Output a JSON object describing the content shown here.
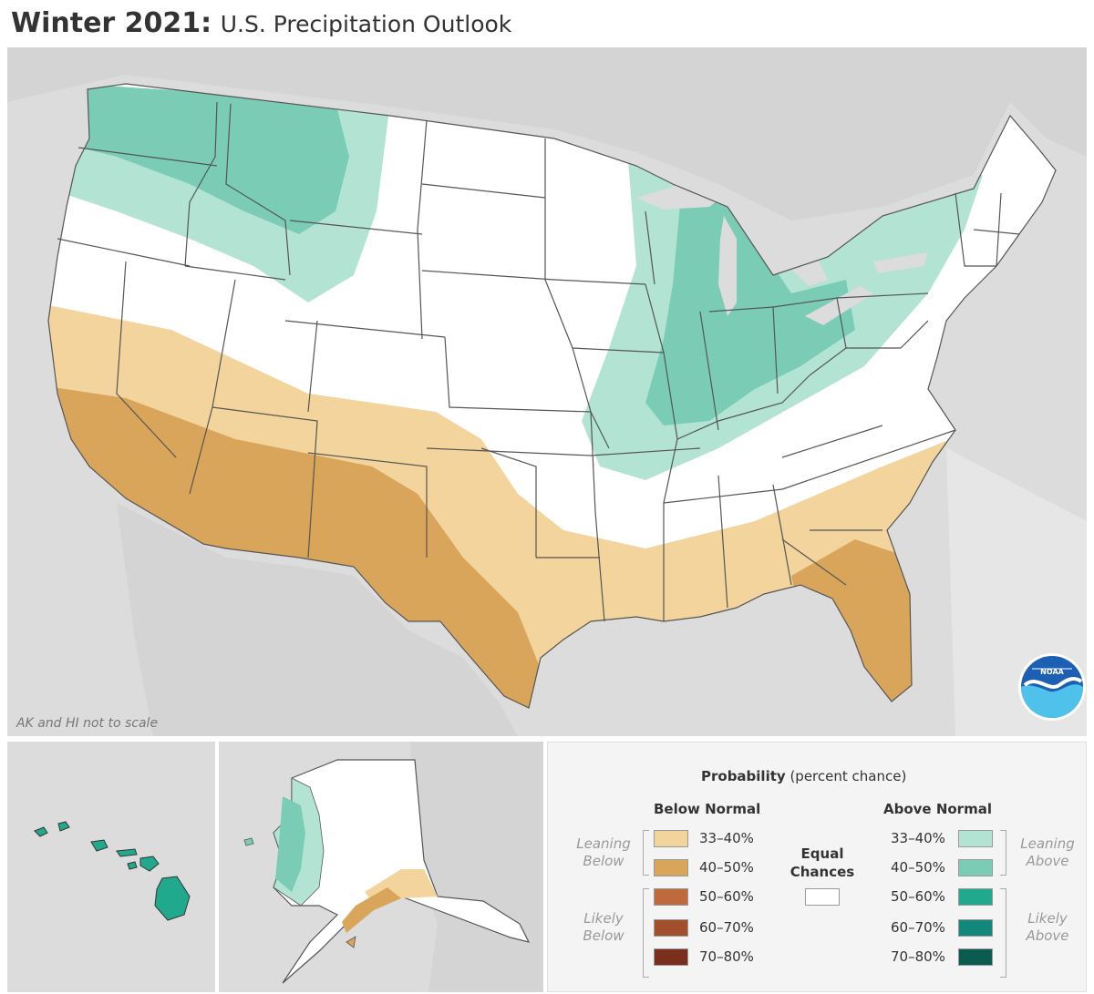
{
  "title": {
    "bold": "Winter 2021:",
    "subtitle": "U.S. Precipitation Outlook"
  },
  "map": {
    "scale_note": "AK and HI not to scale",
    "colors": {
      "background_land": "#dcdcdc",
      "equal_chances": "#ffffff",
      "below_33_40": "#f2d49c",
      "below_40_50": "#d9a55b",
      "above_33_40": "#b3e3d3",
      "above_40_50": "#7acdb4",
      "state_border": "#555555"
    },
    "logo_icon": "noaa-logo"
  },
  "legend": {
    "title_bold": "Probability",
    "title_rest": "(percent chance)",
    "below_header": "Below Normal",
    "above_header": "Above Normal",
    "equal_label_1": "Equal",
    "equal_label_2": "Chances",
    "leaning_below_1": "Leaning",
    "leaning_below_2": "Below",
    "likely_below_1": "Likely",
    "likely_below_2": "Below",
    "leaning_above_1": "Leaning",
    "leaning_above_2": "Above",
    "likely_above_1": "Likely",
    "likely_above_2": "Above",
    "below": [
      {
        "label": "33–40%",
        "color": "#f2d49c"
      },
      {
        "label": "40–50%",
        "color": "#d9a55b"
      },
      {
        "label": "50–60%",
        "color": "#bf6a3c"
      },
      {
        "label": "60–70%",
        "color": "#a24f2e"
      },
      {
        "label": "70–80%",
        "color": "#7a2e1c"
      }
    ],
    "above": [
      {
        "label": "33–40%",
        "color": "#b3e3d3"
      },
      {
        "label": "40–50%",
        "color": "#7acdb4"
      },
      {
        "label": "50–60%",
        "color": "#21a98d"
      },
      {
        "label": "60–70%",
        "color": "#12877a"
      },
      {
        "label": "70–80%",
        "color": "#0b5b50"
      }
    ],
    "equal_color": "#ffffff"
  }
}
